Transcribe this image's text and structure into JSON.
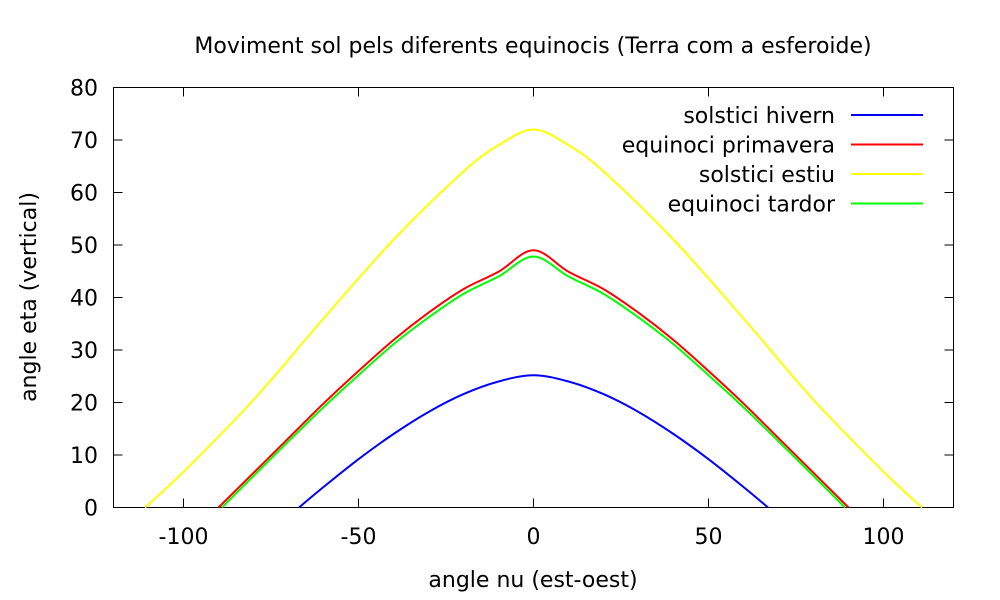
{
  "chart_data": {
    "type": "line",
    "title": "Moviment sol pels diferents equinocis (Terra com a esferoide)",
    "xlabel": "angle nu (est-oest)",
    "ylabel": "angle eta (vertical)",
    "xlim": [
      -120,
      120
    ],
    "ylim": [
      0,
      80
    ],
    "xticks": [
      -100,
      -50,
      0,
      50,
      100
    ],
    "yticks": [
      0,
      10,
      20,
      30,
      40,
      50,
      60,
      70,
      80
    ],
    "grid": false,
    "legend_position": "top-right",
    "series": [
      {
        "name": "solstici hivern",
        "color": "#0000ff",
        "x": [
          -67,
          -60,
          -50,
          -40,
          -30,
          -20,
          -10,
          0,
          10,
          20,
          30,
          40,
          50,
          60,
          67
        ],
        "y": [
          0,
          3.9,
          9.2,
          14,
          18.2,
          21.6,
          24,
          25.2,
          24,
          21.6,
          18.2,
          14,
          9.2,
          3.9,
          0
        ]
      },
      {
        "name": "equinoci primavera",
        "color": "#ff0000",
        "x": [
          -90,
          -80,
          -70,
          -60,
          -50,
          -40,
          -30,
          -20,
          -10,
          0,
          10,
          20,
          30,
          40,
          50,
          60,
          70,
          80,
          90
        ],
        "y": [
          0,
          6.6,
          13.2,
          19.8,
          26,
          31.9,
          37.1,
          41.6,
          44.9,
          49,
          44.9,
          41.6,
          37.1,
          31.9,
          26,
          19.8,
          13.2,
          6.6,
          0
        ]
      },
      {
        "name": "solstici estiu",
        "color": "#ffff00",
        "x": [
          -111,
          -100,
          -80,
          -60,
          -40,
          -20,
          -10,
          0,
          10,
          20,
          40,
          60,
          80,
          100,
          111
        ],
        "y": [
          0,
          6.8,
          20.5,
          36,
          51,
          64,
          69,
          72,
          69,
          64,
          51,
          36,
          20.5,
          6.8,
          0
        ]
      },
      {
        "name": "equinoci tardor",
        "color": "#00ff00",
        "x": [
          -89,
          -80,
          -70,
          -60,
          -50,
          -40,
          -30,
          -20,
          -10,
          0,
          10,
          20,
          30,
          40,
          50,
          60,
          70,
          80,
          89
        ],
        "y": [
          0,
          6,
          12.6,
          19.1,
          25.2,
          31.1,
          36.2,
          40.7,
          44,
          47.8,
          44,
          40.7,
          36.2,
          31.1,
          25.2,
          19.1,
          12.6,
          6,
          0
        ]
      }
    ]
  }
}
